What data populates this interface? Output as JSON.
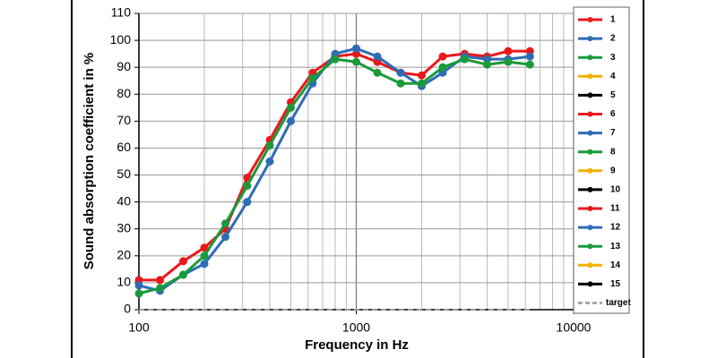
{
  "chart_data": {
    "type": "line",
    "xlabel": "Frequency in Hz",
    "ylabel": "Sound absorption coefficient in %",
    "x": [
      100,
      125,
      160,
      200,
      250,
      315,
      400,
      500,
      630,
      800,
      1000,
      1250,
      1600,
      2000,
      2500,
      3150,
      4000,
      5000,
      6300
    ],
    "xlim": [
      100,
      10000
    ],
    "xticks": [
      100,
      1000,
      10000
    ],
    "xscale": "log",
    "ylim": [
      0,
      110
    ],
    "yticks": [
      0,
      10,
      20,
      30,
      40,
      50,
      60,
      70,
      80,
      90,
      100,
      110
    ],
    "grid": true,
    "legend": "right",
    "series": [
      {
        "name": "1",
        "color": "#e8191c",
        "values": [
          11,
          11,
          18,
          23,
          30,
          49,
          63,
          77,
          88,
          94,
          95,
          92,
          88,
          87,
          94,
          95,
          94,
          96,
          96
        ]
      },
      {
        "name": "2",
        "color": "#2e6db4",
        "values": [
          9,
          7,
          13,
          17,
          27,
          40,
          55,
          70,
          84,
          95,
          97,
          94,
          88,
          83,
          88,
          94,
          93,
          93,
          94
        ]
      },
      {
        "name": "3",
        "color": "#1a9a3a",
        "values": [
          6,
          8,
          13,
          20,
          32,
          46,
          61,
          75,
          86,
          93,
          92,
          88,
          84,
          84,
          90,
          93,
          91,
          92,
          91
        ]
      },
      {
        "name": "4",
        "color": "#f5b000",
        "values": [
          null,
          null,
          null,
          null,
          null,
          null,
          null,
          null,
          null,
          null,
          null,
          null,
          null,
          null,
          null,
          null,
          null,
          null,
          null
        ]
      },
      {
        "name": "5",
        "color": "#000000",
        "values": [
          null,
          null,
          null,
          null,
          null,
          null,
          null,
          null,
          null,
          null,
          null,
          null,
          null,
          null,
          null,
          null,
          null,
          null,
          null
        ]
      },
      {
        "name": "6",
        "color": "#e8191c",
        "values": [
          null,
          null,
          null,
          null,
          null,
          null,
          null,
          null,
          null,
          null,
          null,
          null,
          null,
          null,
          null,
          null,
          null,
          null,
          null
        ]
      },
      {
        "name": "7",
        "color": "#2e6db4",
        "values": [
          null,
          null,
          null,
          null,
          null,
          null,
          null,
          null,
          null,
          null,
          null,
          null,
          null,
          null,
          null,
          null,
          null,
          null,
          null
        ]
      },
      {
        "name": "8",
        "color": "#1a9a3a",
        "values": [
          null,
          null,
          null,
          null,
          null,
          null,
          null,
          null,
          null,
          null,
          null,
          null,
          null,
          null,
          null,
          null,
          null,
          null,
          null
        ]
      },
      {
        "name": "9",
        "color": "#f5b000",
        "values": [
          null,
          null,
          null,
          null,
          null,
          null,
          null,
          null,
          null,
          null,
          null,
          null,
          null,
          null,
          null,
          null,
          null,
          null,
          null
        ]
      },
      {
        "name": "10",
        "color": "#000000",
        "values": [
          null,
          null,
          null,
          null,
          null,
          null,
          null,
          null,
          null,
          null,
          null,
          null,
          null,
          null,
          null,
          null,
          null,
          null,
          null
        ]
      },
      {
        "name": "11",
        "color": "#e8191c",
        "values": [
          null,
          null,
          null,
          null,
          null,
          null,
          null,
          null,
          null,
          null,
          null,
          null,
          null,
          null,
          null,
          null,
          null,
          null,
          null
        ]
      },
      {
        "name": "12",
        "color": "#2e6db4",
        "values": [
          null,
          null,
          null,
          null,
          null,
          null,
          null,
          null,
          null,
          null,
          null,
          null,
          null,
          null,
          null,
          null,
          null,
          null,
          null
        ]
      },
      {
        "name": "13",
        "color": "#1a9a3a",
        "values": [
          null,
          null,
          null,
          null,
          null,
          null,
          null,
          null,
          null,
          null,
          null,
          null,
          null,
          null,
          null,
          null,
          null,
          null,
          null
        ]
      },
      {
        "name": "14",
        "color": "#f5b000",
        "values": [
          null,
          null,
          null,
          null,
          null,
          null,
          null,
          null,
          null,
          null,
          null,
          null,
          null,
          null,
          null,
          null,
          null,
          null,
          null
        ]
      },
      {
        "name": "15",
        "color": "#000000",
        "values": [
          null,
          null,
          null,
          null,
          null,
          null,
          null,
          null,
          null,
          null,
          null,
          null,
          null,
          null,
          null,
          null,
          null,
          null,
          null
        ]
      },
      {
        "name": "target",
        "color": "#999999",
        "dashed": true,
        "values": [
          0,
          0,
          0,
          0,
          0,
          0,
          0,
          0,
          0,
          0,
          0,
          0,
          0,
          0,
          0,
          0,
          0,
          0,
          0
        ]
      }
    ]
  }
}
